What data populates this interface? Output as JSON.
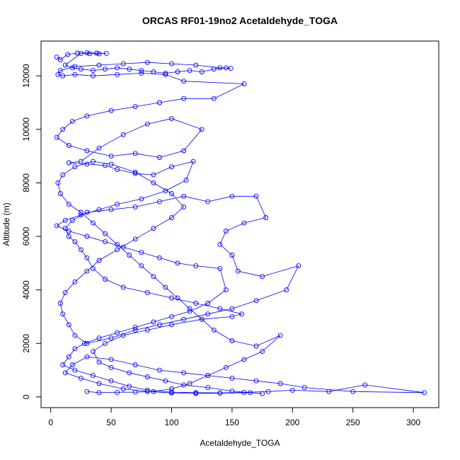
{
  "chart_data": {
    "type": "line",
    "title": "ORCAS RF01-19no2 Acetaldehyde_TOGA",
    "xlabel": "Acetaldehyde_TOGA",
    "ylabel": "Altitude (m)",
    "xlim": [
      -8,
      321
    ],
    "ylim": [
      -400,
      13300
    ],
    "xticks": [
      0,
      50,
      100,
      150,
      200,
      250,
      300
    ],
    "yticks": [
      0,
      2000,
      4000,
      6000,
      8000,
      10000,
      12000
    ],
    "grid": false,
    "legend": "none",
    "marker": "open-circle",
    "series": [
      {
        "color": "#0000ff",
        "points": [
          [
            5,
            12700
          ],
          [
            8,
            12600
          ],
          [
            14,
            12800
          ],
          [
            22,
            12850
          ],
          [
            30,
            12860
          ],
          [
            38,
            12850
          ],
          [
            46,
            12840
          ],
          [
            40,
            12820
          ],
          [
            32,
            12830
          ],
          [
            25,
            12840
          ],
          [
            12,
            12400
          ],
          [
            18,
            12300
          ],
          [
            25,
            12250
          ],
          [
            35,
            12200
          ],
          [
            45,
            12250
          ],
          [
            55,
            12300
          ],
          [
            65,
            12250
          ],
          [
            75,
            12200
          ],
          [
            85,
            12150
          ],
          [
            95,
            12100
          ],
          [
            105,
            12150
          ],
          [
            115,
            12200
          ],
          [
            125,
            12150
          ],
          [
            135,
            12250
          ],
          [
            145,
            12300
          ],
          [
            149,
            12280
          ],
          [
            140,
            12300
          ],
          [
            120,
            12400
          ],
          [
            100,
            12450
          ],
          [
            80,
            12500
          ],
          [
            60,
            12450
          ],
          [
            40,
            12400
          ],
          [
            20,
            12350
          ],
          [
            8,
            12200
          ],
          [
            6,
            12050
          ],
          [
            10,
            12000
          ],
          [
            20,
            12050
          ],
          [
            35,
            12000
          ],
          [
            55,
            12050
          ],
          [
            75,
            12100
          ],
          [
            95,
            12050
          ],
          [
            110,
            11800
          ],
          [
            160,
            11700
          ],
          [
            135,
            11150
          ],
          [
            110,
            11150
          ],
          [
            90,
            11000
          ],
          [
            70,
            10850
          ],
          [
            50,
            10700
          ],
          [
            30,
            10500
          ],
          [
            18,
            10300
          ],
          [
            10,
            10000
          ],
          [
            5,
            9700
          ],
          [
            15,
            9400
          ],
          [
            30,
            9200
          ],
          [
            50,
            9000
          ],
          [
            70,
            9100
          ],
          [
            90,
            8950
          ],
          [
            110,
            9200
          ],
          [
            125,
            10000
          ],
          [
            100,
            10400
          ],
          [
            80,
            10200
          ],
          [
            60,
            9800
          ],
          [
            40,
            9300
          ],
          [
            25,
            8800
          ],
          [
            15,
            8750
          ],
          [
            30,
            8700
          ],
          [
            45,
            8650
          ],
          [
            55,
            8500
          ],
          [
            70,
            8350
          ],
          [
            85,
            8300
          ],
          [
            100,
            8600
          ],
          [
            118,
            8800
          ],
          [
            112,
            8100
          ],
          [
            95,
            7700
          ],
          [
            75,
            7400
          ],
          [
            55,
            7200
          ],
          [
            40,
            7000
          ],
          [
            25,
            6800
          ],
          [
            12,
            6600
          ],
          [
            5,
            6400
          ],
          [
            15,
            6200
          ],
          [
            30,
            6000
          ],
          [
            45,
            5800
          ],
          [
            60,
            5600
          ],
          [
            75,
            5400
          ],
          [
            90,
            5200
          ],
          [
            105,
            5000
          ],
          [
            120,
            4900
          ],
          [
            140,
            4800
          ],
          [
            145,
            4000
          ],
          [
            130,
            3500
          ],
          [
            115,
            3200
          ],
          [
            100,
            3000
          ],
          [
            85,
            2800
          ],
          [
            70,
            2600
          ],
          [
            55,
            2400
          ],
          [
            40,
            2200
          ],
          [
            28,
            2000
          ],
          [
            20,
            1800
          ],
          [
            15,
            1500
          ],
          [
            10,
            1200
          ],
          [
            20,
            1000
          ],
          [
            35,
            800
          ],
          [
            50,
            600
          ],
          [
            65,
            400
          ],
          [
            80,
            250
          ],
          [
            100,
            180
          ],
          [
            120,
            160
          ],
          [
            140,
            150
          ],
          [
            160,
            170
          ],
          [
            180,
            200
          ],
          [
            200,
            250
          ],
          [
            230,
            200
          ],
          [
            260,
            450
          ],
          [
            309,
            160
          ],
          [
            250,
            200
          ],
          [
            210,
            350
          ],
          [
            190,
            500
          ],
          [
            170,
            600
          ],
          [
            150,
            700
          ],
          [
            130,
            800
          ],
          [
            110,
            900
          ],
          [
            90,
            1000
          ],
          [
            70,
            1200
          ],
          [
            50,
            1400
          ],
          [
            30,
            1500
          ],
          [
            18,
            1200
          ],
          [
            12,
            900
          ],
          [
            25,
            700
          ],
          [
            40,
            500
          ],
          [
            60,
            300
          ],
          [
            80,
            200
          ],
          [
            100,
            150
          ],
          [
            120,
            130
          ],
          [
            140,
            140
          ],
          [
            165,
            160
          ],
          [
            175,
            120
          ],
          [
            150,
            220
          ],
          [
            130,
            350
          ],
          [
            110,
            450
          ],
          [
            95,
            600
          ],
          [
            80,
            750
          ],
          [
            65,
            900
          ],
          [
            50,
            1100
          ],
          [
            40,
            1300
          ],
          [
            35,
            1700
          ],
          [
            45,
            2000
          ],
          [
            60,
            2300
          ],
          [
            80,
            2500
          ],
          [
            100,
            2700
          ],
          [
            125,
            2900
          ],
          [
            150,
            3000
          ],
          [
            158,
            3100
          ],
          [
            140,
            3300
          ],
          [
            120,
            3500
          ],
          [
            100,
            3700
          ],
          [
            80,
            3900
          ],
          [
            60,
            4100
          ],
          [
            45,
            4400
          ],
          [
            35,
            4800
          ],
          [
            30,
            5200
          ],
          [
            25,
            5500
          ],
          [
            20,
            5800
          ],
          [
            15,
            6000
          ],
          [
            12,
            6300
          ],
          [
            18,
            6600
          ],
          [
            30,
            6900
          ],
          [
            50,
            7000
          ],
          [
            70,
            7100
          ],
          [
            90,
            7300
          ],
          [
            110,
            7500
          ],
          [
            130,
            7300
          ],
          [
            150,
            7500
          ],
          [
            170,
            7500
          ],
          [
            178,
            6700
          ],
          [
            160,
            6500
          ],
          [
            145,
            6200
          ],
          [
            140,
            5700
          ],
          [
            150,
            5300
          ],
          [
            155,
            4700
          ],
          [
            175,
            4500
          ],
          [
            205,
            4900
          ],
          [
            195,
            4000
          ],
          [
            170,
            3600
          ],
          [
            150,
            3300
          ],
          [
            130,
            3100
          ],
          [
            110,
            2900
          ],
          [
            90,
            2700
          ],
          [
            70,
            2500
          ],
          [
            50,
            2200
          ],
          [
            30,
            2000
          ],
          [
            20,
            2300
          ],
          [
            15,
            2700
          ],
          [
            10,
            3100
          ],
          [
            8,
            3500
          ],
          [
            12,
            3900
          ],
          [
            20,
            4300
          ],
          [
            30,
            4700
          ],
          [
            40,
            5100
          ],
          [
            55,
            5500
          ],
          [
            70,
            5900
          ],
          [
            85,
            6300
          ],
          [
            100,
            6700
          ],
          [
            110,
            7100
          ],
          [
            100,
            7600
          ],
          [
            85,
            8000
          ],
          [
            70,
            8400
          ],
          [
            50,
            8700
          ],
          [
            35,
            8800
          ],
          [
            20,
            8600
          ],
          [
            10,
            8300
          ],
          [
            6,
            8000
          ],
          [
            8,
            7600
          ],
          [
            15,
            7200
          ],
          [
            25,
            6900
          ],
          [
            35,
            6500
          ],
          [
            45,
            6100
          ],
          [
            55,
            5700
          ],
          [
            65,
            5300
          ],
          [
            75,
            4900
          ],
          [
            85,
            4500
          ],
          [
            95,
            4100
          ],
          [
            105,
            3700
          ],
          [
            115,
            3300
          ],
          [
            125,
            2900
          ],
          [
            135,
            2500
          ],
          [
            150,
            2100
          ],
          [
            170,
            1900
          ],
          [
            190,
            2300
          ],
          [
            175,
            1700
          ],
          [
            160,
            1400
          ],
          [
            145,
            1100
          ],
          [
            130,
            800
          ],
          [
            115,
            500
          ],
          [
            100,
            300
          ],
          [
            85,
            200
          ],
          [
            70,
            180
          ],
          [
            55,
            170
          ],
          [
            40,
            160
          ],
          [
            30,
            200
          ]
        ]
      }
    ]
  }
}
